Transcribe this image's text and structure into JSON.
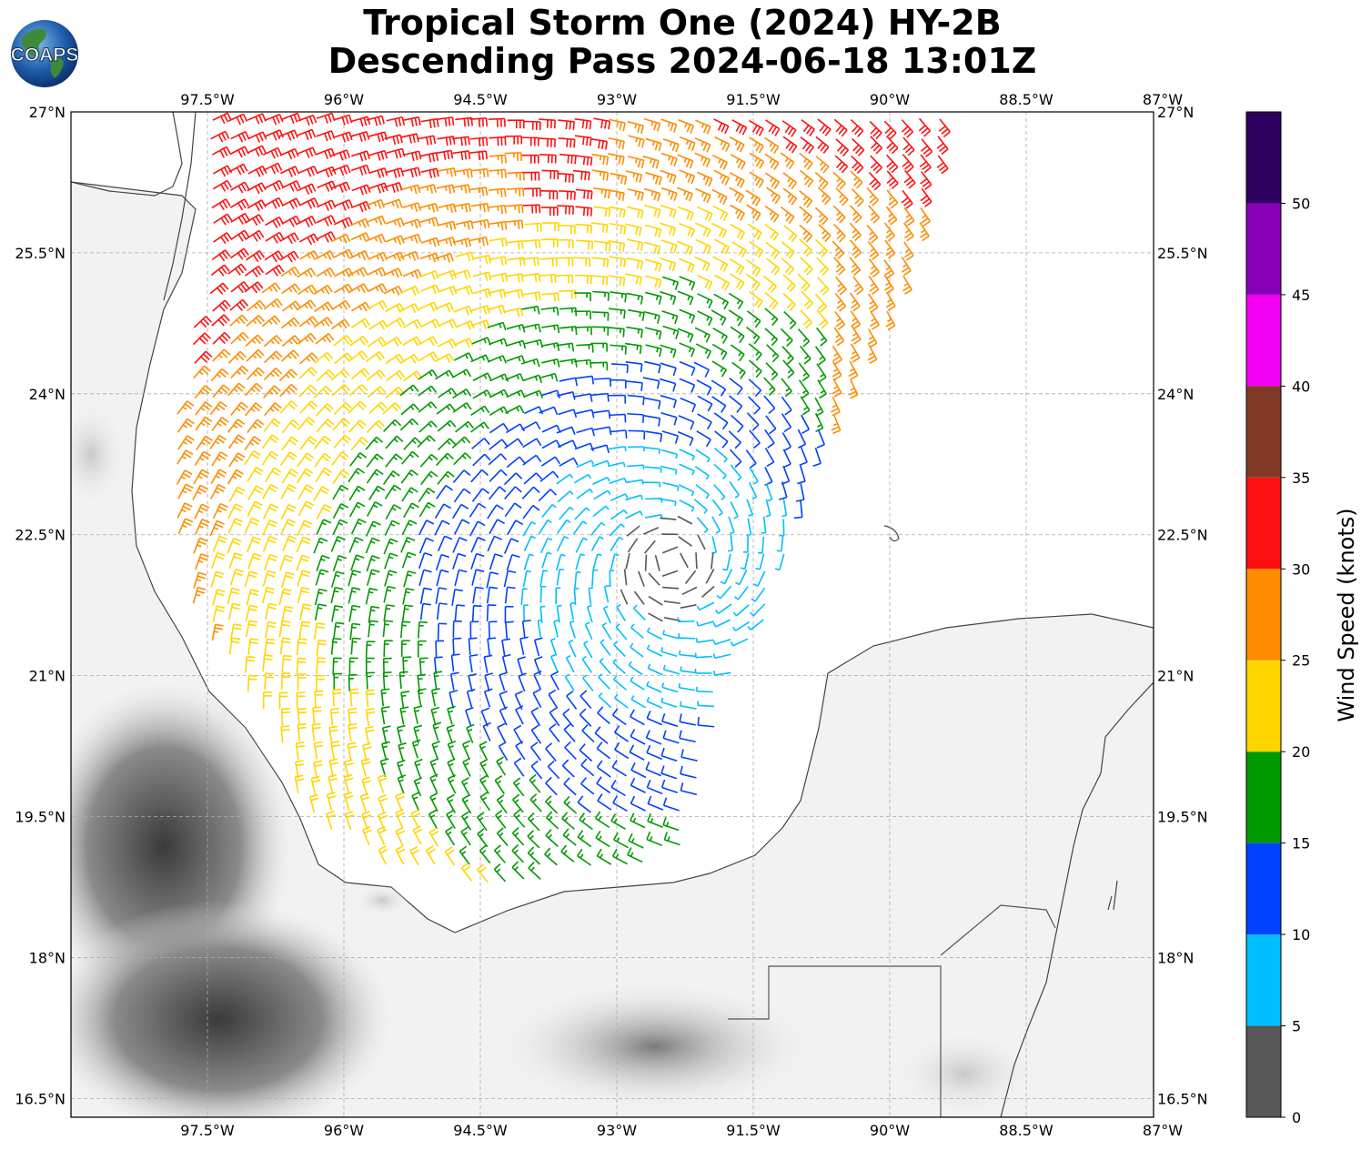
{
  "title": {
    "line1": "Tropical Storm One (2024) HY-2B",
    "line2": "Descending Pass 2024-06-18 13:01Z"
  },
  "logo": {
    "text": "COAPS"
  },
  "map": {
    "lon_labels": [
      "97.5°W",
      "96°W",
      "94.5°W",
      "93°W",
      "91.5°W",
      "90°W",
      "88.5°W",
      "87°W"
    ],
    "lat_labels": [
      "27°N",
      "25.5°N",
      "24°N",
      "22.5°N",
      "21°N",
      "19.5°N",
      "18°N",
      "16.5°N"
    ],
    "lon_range": [
      -99,
      -87.1
    ],
    "lat_range": [
      16.3,
      27
    ],
    "grid": true,
    "storm_center_approx": {
      "lon": -92.4,
      "lat": 22.2
    }
  },
  "colorbar": {
    "label": "Wind Speed (knots)",
    "ticks": [
      "0",
      "5",
      "10",
      "15",
      "20",
      "25",
      "30",
      "35",
      "40",
      "45",
      "50"
    ],
    "range": [
      0,
      55
    ],
    "bins": [
      {
        "from": 0,
        "to": 5,
        "color": "#575757"
      },
      {
        "from": 5,
        "to": 10,
        "color": "#00bfff"
      },
      {
        "from": 10,
        "to": 15,
        "color": "#0040ff"
      },
      {
        "from": 15,
        "to": 20,
        "color": "#009900"
      },
      {
        "from": 20,
        "to": 25,
        "color": "#ffd500"
      },
      {
        "from": 25,
        "to": 30,
        "color": "#ff8c00"
      },
      {
        "from": 30,
        "to": 35,
        "color": "#ff1010"
      },
      {
        "from": 35,
        "to": 40,
        "color": "#803a26"
      },
      {
        "from": 40,
        "to": 45,
        "color": "#f200f2"
      },
      {
        "from": 45,
        "to": 50,
        "color": "#8600b8"
      },
      {
        "from": 50,
        "to": 55,
        "color": "#2e0060"
      }
    ]
  }
}
